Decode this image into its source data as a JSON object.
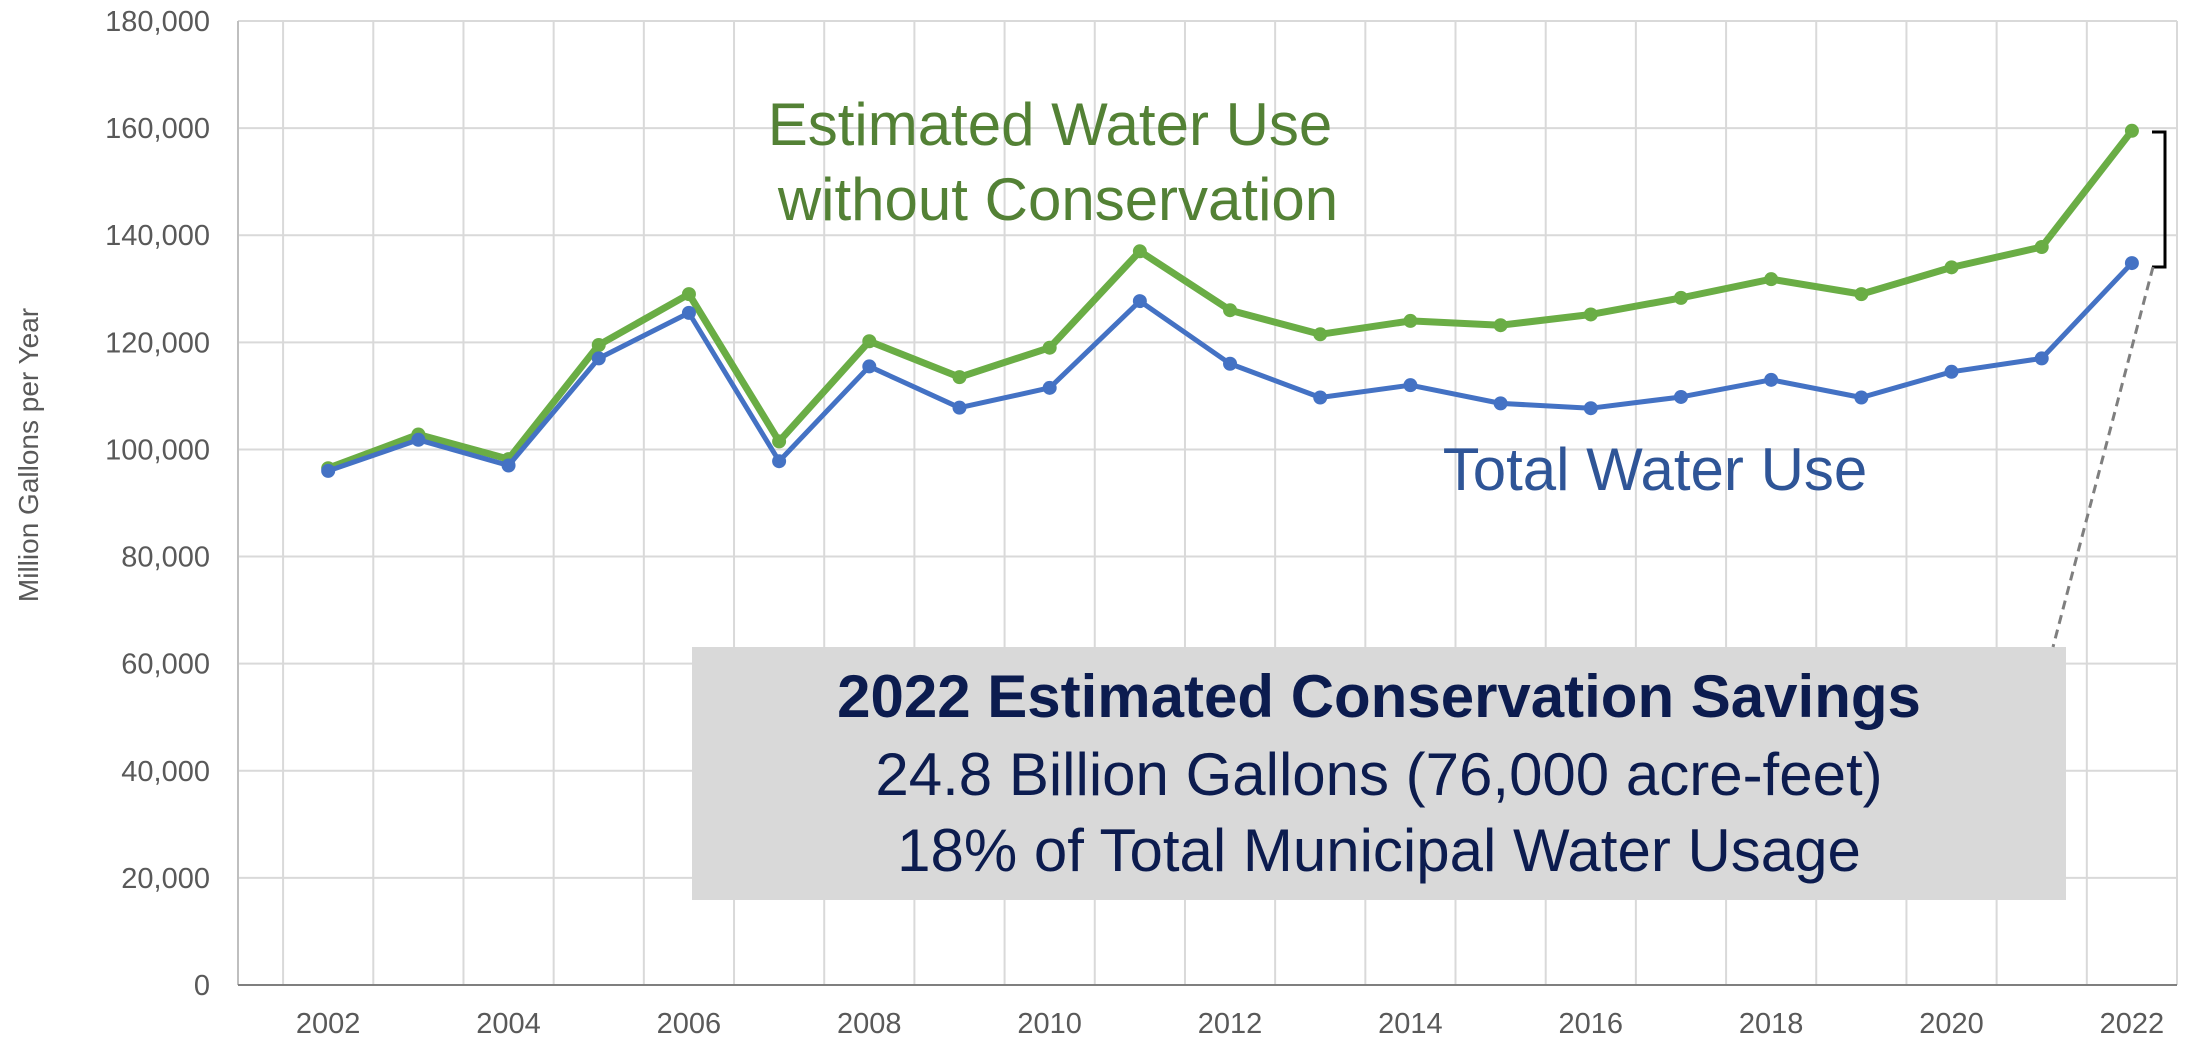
{
  "chart_data": {
    "type": "line",
    "ylabel": "Million Gallons per Year",
    "ylim": [
      0,
      180000
    ],
    "yticks": [
      0,
      20000,
      40000,
      60000,
      80000,
      100000,
      120000,
      140000,
      160000,
      180000
    ],
    "ytick_labels": [
      "0",
      "20,000",
      "40,000",
      "60,000",
      "80,000",
      "100,000",
      "120,000",
      "140,000",
      "160,000",
      "180,000"
    ],
    "xlim": [
      2001,
      2022.5
    ],
    "x": [
      2002,
      2003,
      2004,
      2005,
      2006,
      2007,
      2008,
      2009,
      2010,
      2011,
      2012,
      2013,
      2014,
      2015,
      2016,
      2017,
      2018,
      2019,
      2020,
      2021,
      2022
    ],
    "xtick_labels": [
      "2002",
      "2004",
      "2006",
      "2008",
      "2010",
      "2012",
      "2014",
      "2016",
      "2018",
      "2020",
      "2022"
    ],
    "grid": true,
    "series": [
      {
        "name": "Estimated Water Use without Conservation",
        "color": "#6aad45",
        "values": [
          96500,
          102800,
          98200,
          119500,
          129000,
          101500,
          120200,
          113500,
          119000,
          137000,
          126000,
          121500,
          124000,
          123200,
          125200,
          128300,
          131800,
          129000,
          134000,
          137800,
          159500
        ]
      },
      {
        "name": "Total Water Use",
        "color": "#4472c4",
        "values": [
          96000,
          101800,
          97000,
          117000,
          125500,
          97800,
          115500,
          107800,
          111500,
          127700,
          116000,
          109700,
          112000,
          108600,
          107700,
          109800,
          113000,
          109700,
          114500,
          117000,
          134800
        ]
      }
    ],
    "annotations": {
      "green_label": [
        "Estimated Water Use",
        "without Conservation"
      ],
      "blue_label": "Total Water Use",
      "box_title": "2022 Estimated Conservation Savings",
      "box_lines": [
        "24.8 Billion Gallons (76,000 acre-feet)",
        "18% of Total Municipal Water Usage"
      ],
      "box_color": "#d9d9d9",
      "text_color": "#0c1c4f"
    }
  }
}
